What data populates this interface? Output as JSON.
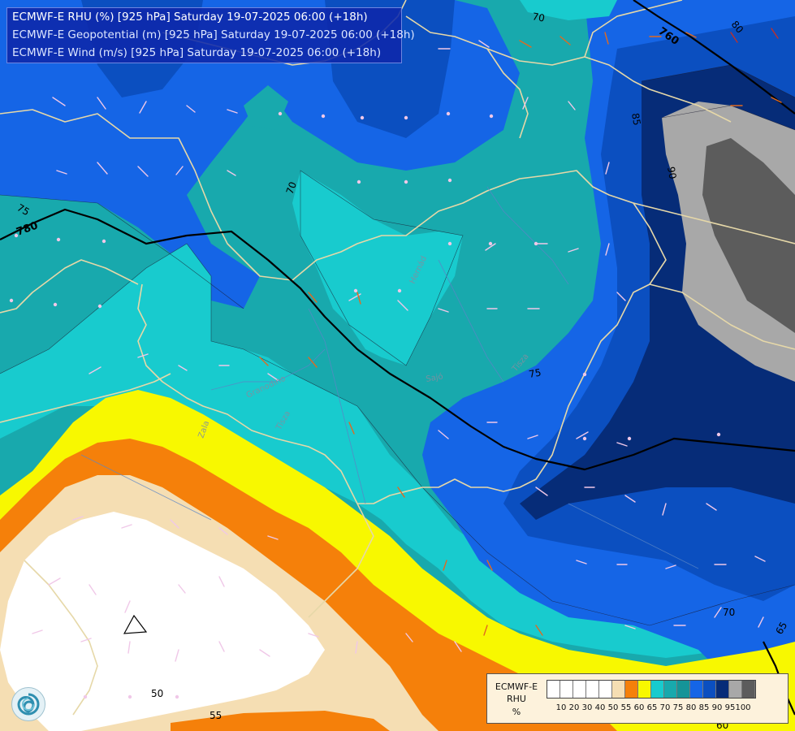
{
  "header": {
    "line1": "ECMWF-E RHU (%) [925 hPa] Saturday 19-07-2025 06:00 (+18h)",
    "line2": "ECMWF-E Geopotential (m) [925 hPa] Saturday 19-07-2025 06:00 (+18h)",
    "line3": "ECMWF-E Wind (m/s) [925 hPa] Saturday 19-07-2025 06:00 (+18h)"
  },
  "legend": {
    "label1": "ECMWF-E",
    "label2": "RHU",
    "label3": "%",
    "colors": [
      "#ffffff",
      "#ffffff",
      "#ffffff",
      "#ffffff",
      "#ffffff",
      "#f5deb3",
      "#f5800a",
      "#f8f800",
      "#18cbce",
      "#18a9ad",
      "#159498",
      "#1565e6",
      "#0b4fc0",
      "#062c78",
      "#a8a8a8",
      "#5c5c5c"
    ],
    "ticks": [
      "10",
      "20",
      "30",
      "40",
      "50",
      "55",
      "60",
      "65",
      "70",
      "75",
      "80",
      "85",
      "90",
      "95",
      "100"
    ]
  },
  "contour_labels": {
    "geo_780": "780",
    "geo_760": "760",
    "rh_70_top": "70",
    "rh_80_top": "80",
    "rh_75_left": "75",
    "rh_70_mid": "70",
    "rh_85": "85",
    "rh_90": "90",
    "rh_75_mid": "75",
    "rh_70_low": "70",
    "rh_65_right": "65",
    "rh_60_bottom": "60",
    "rh_50": "50",
    "rh_55": "55"
  },
  "place_labels": {
    "tisza": "Tisza",
    "zala": "Zala",
    "granodino": "Granodino",
    "hernad": "Hernád",
    "sajo": "Sajó",
    "tisza_e": "Tisza"
  },
  "colors": {
    "fill_100": "#5c5c5c",
    "fill_95": "#a8a8a8",
    "fill_90": "#062c78",
    "fill_85": "#0b4fc0",
    "fill_80": "#1565e6",
    "fill_75": "#159498",
    "fill_70": "#18a9ad",
    "fill_65": "#18cbce",
    "fill_60": "#f8f800",
    "fill_55": "#f5800a",
    "fill_50": "#f5deb3",
    "fill_low": "#ffffff",
    "borders": "#e6d8a8",
    "geo_line": "#000000"
  }
}
